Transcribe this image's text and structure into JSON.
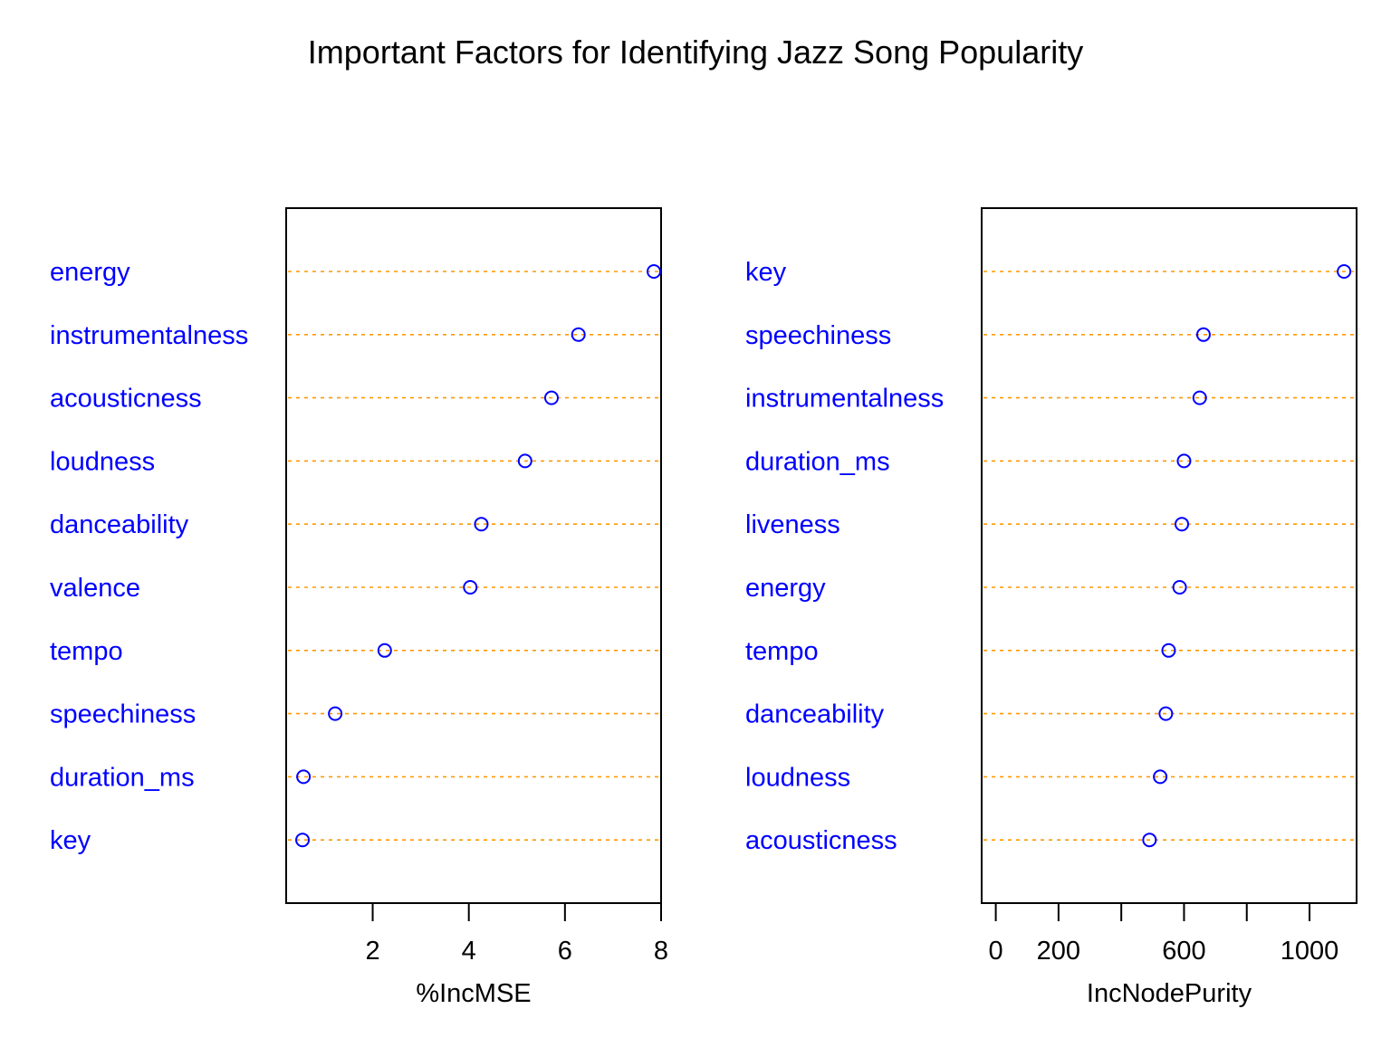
{
  "chart_title": "Important Factors for Identifying Jazz Song Popularity",
  "colors": {
    "label": "#0000ff",
    "point": "#0000ff",
    "guide": "#ff9900",
    "axis": "#000000",
    "background": "#ffffff"
  },
  "chart_data": [
    {
      "type": "scatter",
      "subtype": "dotchart",
      "xlabel": "%IncMSE",
      "xlim": [
        0.2,
        8.0
      ],
      "xticks": [
        2,
        4,
        6,
        8
      ],
      "grid": false,
      "categories": [
        "energy",
        "instrumentalness",
        "acousticness",
        "loudness",
        "danceability",
        "valence",
        "tempo",
        "speechiness",
        "duration_ms",
        "key"
      ],
      "values": [
        7.85,
        6.28,
        5.72,
        5.17,
        4.26,
        4.03,
        2.25,
        1.22,
        0.56,
        0.54
      ]
    },
    {
      "type": "scatter",
      "subtype": "dotchart",
      "xlabel": "IncNodePurity",
      "xlim": [
        -45,
        1150
      ],
      "xticks": [
        0,
        200,
        400,
        600,
        800,
        1000
      ],
      "xtick_labels": [
        "0",
        "200",
        "",
        "600",
        "",
        "1000"
      ],
      "grid": false,
      "categories": [
        "key",
        "speechiness",
        "instrumentalness",
        "duration_ms",
        "liveness",
        "energy",
        "tempo",
        "danceability",
        "loudness",
        "acousticness"
      ],
      "values": [
        1110,
        662,
        650,
        600,
        593,
        586,
        551,
        542,
        524,
        490
      ]
    }
  ]
}
